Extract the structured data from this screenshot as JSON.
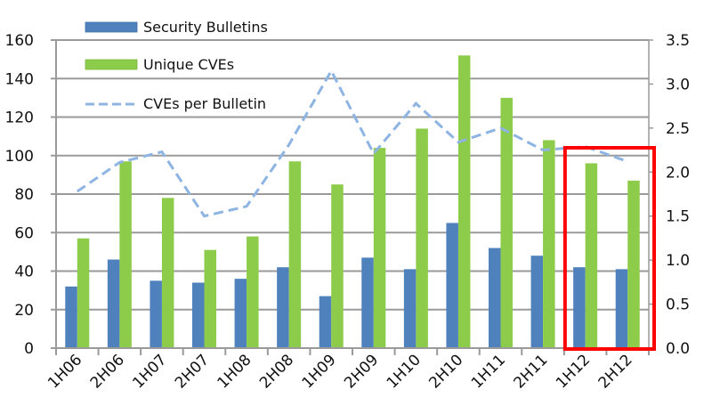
{
  "chart_data": {
    "type": "bar",
    "title": "",
    "xlabel": "",
    "ylabel": "",
    "categories": [
      "1H06",
      "2H06",
      "1H07",
      "2H07",
      "1H08",
      "2H08",
      "1H09",
      "2H09",
      "1H10",
      "2H10",
      "1H11",
      "2H11",
      "1H12",
      "2H12"
    ],
    "series": [
      {
        "name": "Security Bulletins",
        "type": "bar",
        "axis": "left",
        "color": "#4F81BD",
        "values": [
          32,
          46,
          35,
          34,
          36,
          42,
          27,
          47,
          41,
          65,
          52,
          48,
          42,
          41
        ]
      },
      {
        "name": "Unique CVEs",
        "type": "bar",
        "axis": "left",
        "color": "#8DCB4A",
        "values": [
          57,
          97,
          78,
          51,
          58,
          97,
          85,
          104,
          114,
          152,
          130,
          108,
          96,
          87
        ]
      },
      {
        "name": "CVEs per Bulletin",
        "type": "line",
        "style": "dashed",
        "axis": "right",
        "color": "#8DB4E2",
        "values": [
          1.78,
          2.11,
          2.23,
          1.5,
          1.61,
          2.31,
          3.15,
          2.21,
          2.78,
          2.34,
          2.5,
          2.25,
          2.29,
          2.12
        ]
      }
    ],
    "ylim": [
      0,
      160
    ],
    "yticks": [
      "0",
      "20",
      "40",
      "60",
      "80",
      "100",
      "120",
      "140",
      "160"
    ],
    "y2lim": [
      0,
      3.5
    ],
    "y2ticks": [
      "0.0",
      "0.5",
      "1.0",
      "1.5",
      "2.0",
      "2.5",
      "3.0",
      "3.5"
    ],
    "grid": true,
    "legend": "top-left",
    "highlight": {
      "categories": [
        "1H12",
        "2H12"
      ],
      "color": "#FF0000"
    }
  }
}
